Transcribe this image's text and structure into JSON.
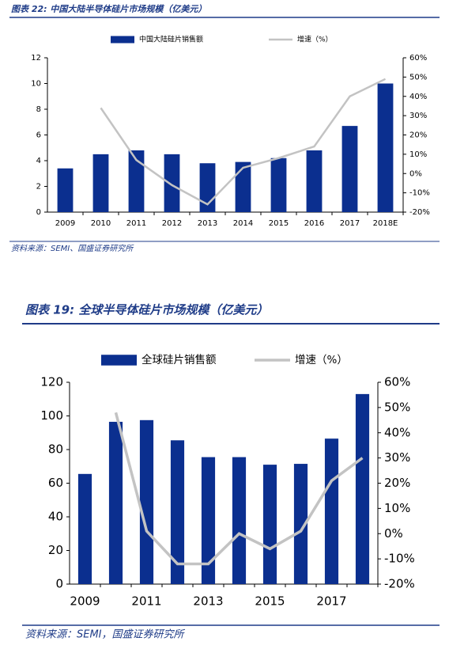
{
  "chart_data": [
    {
      "type": "bar",
      "title": "图表 22: 中国大陆半导体硅片市场规模（亿美元）",
      "source": "资料来源：SEMI、国盛证券研究所",
      "categories": [
        "2009",
        "2010",
        "2011",
        "2012",
        "2013",
        "2014",
        "2015",
        "2016",
        "2017",
        "2018E"
      ],
      "series": [
        {
          "name": "中国大陆硅片销售额",
          "type": "bar",
          "color": "#0b2f8f",
          "values": [
            3.4,
            4.5,
            4.8,
            4.5,
            3.8,
            3.9,
            4.2,
            4.8,
            6.7,
            10.0
          ]
        },
        {
          "name": "增速（%）",
          "type": "line",
          "axis": "y2",
          "color": "#c3c3c3",
          "values": [
            null,
            34,
            7,
            -6,
            -16,
            3,
            8,
            14,
            40,
            49
          ]
        }
      ],
      "ylim": [
        0,
        12
      ],
      "yticks": [
        0,
        2,
        4,
        6,
        8,
        10,
        12
      ],
      "y2lim": [
        -20,
        60
      ],
      "y2ticks": [
        {
          "value": -20,
          "label": "-20%"
        },
        {
          "value": -10,
          "label": "-10%"
        },
        {
          "value": 0,
          "label": "0%"
        },
        {
          "value": 10,
          "label": "10%"
        },
        {
          "value": 20,
          "label": "20%"
        },
        {
          "value": 30,
          "label": "30%"
        },
        {
          "value": 40,
          "label": "40%"
        },
        {
          "value": 50,
          "label": "50%"
        },
        {
          "value": 60,
          "label": "60%"
        }
      ]
    },
    {
      "type": "bar",
      "title": "图表 19: 全球半导体硅片市场规模（亿美元）",
      "source": "资料来源：SEMI，国盛证券研究所",
      "categories": [
        "2009",
        null,
        "2011",
        null,
        "2013",
        null,
        "2015",
        null,
        "2017",
        null
      ],
      "series": [
        {
          "name": "全球硅片销售额",
          "type": "bar",
          "color": "#0b2f8f",
          "values": [
            65.5,
            96.5,
            97.5,
            85.5,
            75.5,
            75.5,
            71,
            71.5,
            86.5,
            113
          ]
        },
        {
          "name": "增速（%）",
          "type": "line",
          "axis": "y2",
          "color": "#c3c3c3",
          "values": [
            null,
            48,
            1,
            -12,
            -12,
            0,
            -6,
            1,
            21,
            30
          ]
        }
      ],
      "ylim": [
        0,
        120
      ],
      "yticks": [
        0,
        20,
        40,
        60,
        80,
        100,
        120
      ],
      "y2lim": [
        -20,
        60
      ],
      "y2ticks": [
        {
          "value": -20,
          "label": "-20%"
        },
        {
          "value": -10,
          "label": "-10%"
        },
        {
          "value": 0,
          "label": "0%"
        },
        {
          "value": 10,
          "label": "10%"
        },
        {
          "value": 20,
          "label": "20%"
        },
        {
          "value": 30,
          "label": "30%"
        },
        {
          "value": 40,
          "label": "40%"
        },
        {
          "value": 50,
          "label": "50%"
        },
        {
          "value": 60,
          "label": "60%"
        }
      ]
    }
  ]
}
